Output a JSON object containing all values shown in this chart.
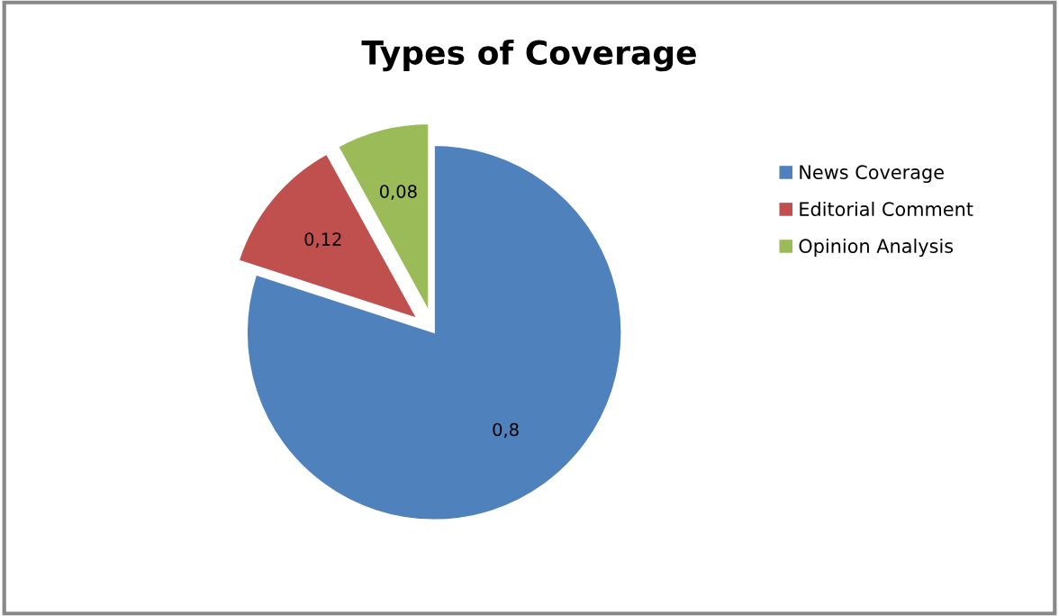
{
  "chart_data": {
    "type": "pie",
    "title": "Types of Coverage",
    "categories": [
      "News Coverage",
      "Editorial Comment",
      "Opinion Analysis"
    ],
    "values": [
      0.8,
      0.12,
      0.08
    ],
    "value_labels": [
      "0,8",
      "0,12",
      "0,08"
    ],
    "colors": [
      "#4f81bd",
      "#c0504d",
      "#9bbb59"
    ],
    "legend": "right"
  }
}
